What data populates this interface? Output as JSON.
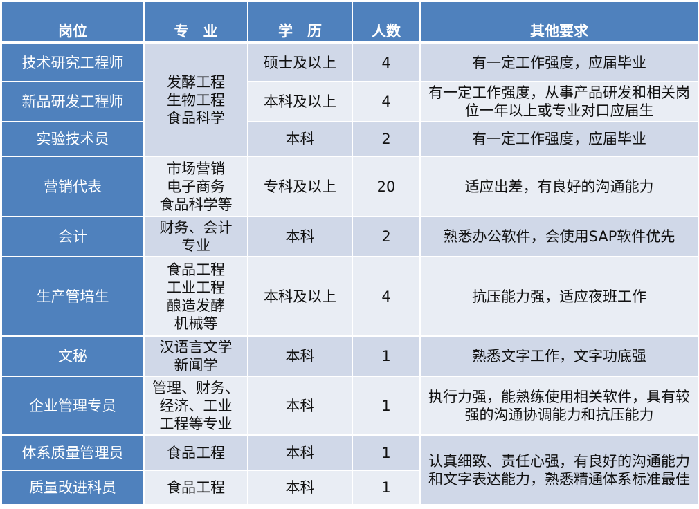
{
  "headers": [
    "岗位",
    "专　业",
    "学　历",
    "人数",
    "其他要求"
  ],
  "rows": [
    {
      "position": "技术研究工程师",
      "major": "发酵工程\n生物工程\n食品科学",
      "education": "硕士及以上",
      "count": "4",
      "requirements": "有一定工作强度，应届毕业"
    },
    {
      "position": "新品研发工程师",
      "education": "本科及以上",
      "count": "4",
      "requirements": "有一定工作强度，从事产品研发和相关岗位一年以上或专业对口应届生"
    },
    {
      "position": "实验技术员",
      "education": "本科",
      "count": "2",
      "requirements": "有一定工作强度，应届毕业"
    },
    {
      "position": "营销代表",
      "major": "市场营销\n电子商务\n食品科学等",
      "education": "专科及以上",
      "count": "20",
      "requirements": "适应出差，有良好的沟通能力"
    },
    {
      "position": "会计",
      "major": "财务、会计\n专业",
      "education": "本科",
      "count": "2",
      "requirements": "熟悉办公软件，会使用SAP软件优先"
    },
    {
      "position": "生产管培生",
      "major": "食品工程\n工业工程\n酿造发酵\n机械等",
      "education": "本科及以上",
      "count": "4",
      "requirements": "抗压能力强，适应夜班工作"
    },
    {
      "position": "文秘",
      "major": "汉语言文学\n新闻学",
      "education": "本科",
      "count": "1",
      "requirements": "熟悉文字工作，文字功底强"
    },
    {
      "position": "企业管理专员",
      "major": "管理、财务、\n经济、工业\n工程等专业",
      "education": "本科",
      "count": "1",
      "requirements": "执行力强，能熟练使用相关软件，具有较强的沟通协调能力和抗压能力"
    },
    {
      "position": "体系质量管理员",
      "major": "食品工程",
      "education": "本科",
      "count": "1",
      "requirements": "认真细致、责任心强，有良好的沟通能力和文字表达能力，熟悉精通体系标准最佳"
    },
    {
      "position": "质量改进科员",
      "major": "食品工程",
      "education": "本科",
      "count": "1"
    }
  ],
  "colors": {
    "header": "#4f81bd",
    "row_dark": "#d0d8e8",
    "row_light": "#e9edf4"
  }
}
